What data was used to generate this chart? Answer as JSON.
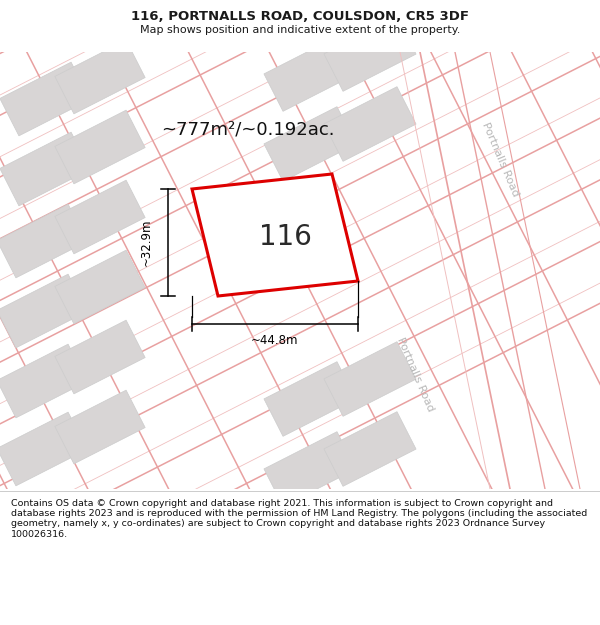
{
  "title_line1": "116, PORTNALLS ROAD, COULSDON, CR5 3DF",
  "title_line2": "Map shows position and indicative extent of the property.",
  "area_text": "~777m²/~0.192ac.",
  "property_number": "116",
  "dim_width": "~44.8m",
  "dim_height": "~32.9m",
  "road_label_top": "Portnalls Road",
  "road_label_bottom": "Portnalls Road",
  "footer_text": "Contains OS data © Crown copyright and database right 2021. This information is subject to Crown copyright and database rights 2023 and is reproduced with the permission of HM Land Registry. The polygons (including the associated geometry, namely x, y co-ordinates) are subject to Crown copyright and database rights 2023 Ordnance Survey 100026316.",
  "bg_color": "#ffffff",
  "map_bg": "#ffffff",
  "plot_outline_color": "#dd0000",
  "road_line_color": "#e8a0a0",
  "road_line_color2": "#f0c0c0",
  "building_fill": "#d8d5d5",
  "building_edge": "#cccccc",
  "title_color": "#1a1a1a",
  "footer_color": "#111111",
  "dim_color": "#000000",
  "road_label_color": "#b8b8b8"
}
